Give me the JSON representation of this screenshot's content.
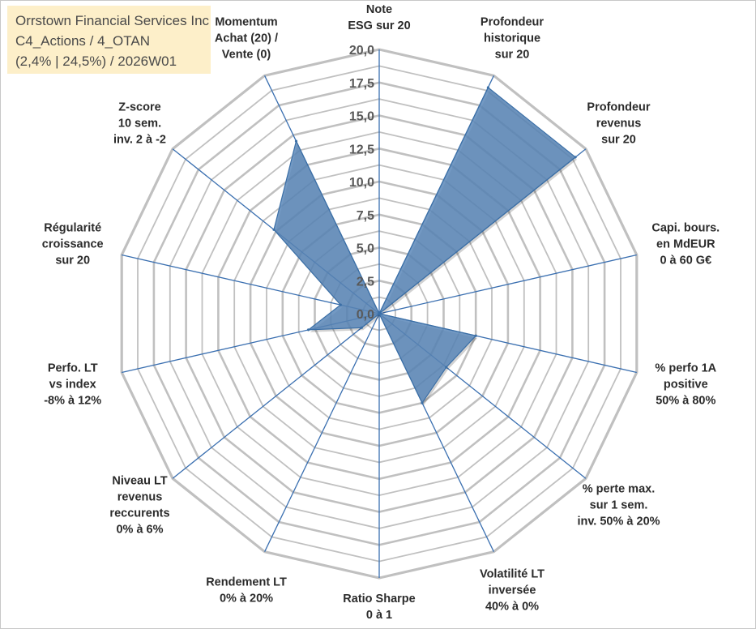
{
  "title_box": {
    "line1": "Orrstown Financial Services Inc",
    "line2": "C4_Actions / 4_OTAN",
    "line3": "(2,4% | 24,5%) / 2026W01"
  },
  "colors": {
    "fill": "#5b87b8",
    "stroke": "#3b6fa6",
    "grid": "#c0c0c0",
    "spoke": "#3a6fb0",
    "title_bg": "#fdefc9"
  },
  "chart_data": {
    "type": "radar",
    "title": "Orrstown Financial Services Inc",
    "rmin": 0,
    "rmax": 20,
    "ticks": [
      "0,0",
      "2,5",
      "5,0",
      "7,5",
      "10,0",
      "12,5",
      "15,0",
      "17,5",
      "20,0"
    ],
    "tick_values": [
      0,
      2.5,
      5,
      7.5,
      10,
      12.5,
      15,
      17.5,
      20
    ],
    "axes": [
      {
        "label": [
          "Note",
          "ESG sur 20"
        ],
        "value": 0
      },
      {
        "label": [
          "Profondeur",
          "historique",
          "sur 20"
        ],
        "value": 19
      },
      {
        "label": [
          "Profondeur",
          "revenus",
          "sur 20"
        ],
        "value": 19
      },
      {
        "label": [
          "Capi. bours.",
          "en MdEUR",
          "0 à 60 G€"
        ],
        "value": 0
      },
      {
        "label": [
          "% perfo 1A",
          "positive",
          "50% à 80%"
        ],
        "value": 7.5
      },
      {
        "label": [
          "% perte max.",
          "sur 1 sem.",
          "inv. 50% à 20%"
        ],
        "value": 6.5
      },
      {
        "label": [
          "Volatilité LT",
          "inversée",
          "40% à 0%"
        ],
        "value": 7.5
      },
      {
        "label": [
          "Ratio Sharpe",
          "0 à 1"
        ],
        "value": 0
      },
      {
        "label": [
          "Rendement LT",
          "0% à 20%"
        ],
        "value": 0
      },
      {
        "label": [
          "Niveau LT",
          "revenus",
          "reccurents",
          "0% à 6%"
        ],
        "value": 1.7
      },
      {
        "label": [
          "Perfo. LT",
          "vs index",
          "-8% à 12%"
        ],
        "value": 5.5
      },
      {
        "label": [
          "Régularité",
          "croissance",
          "sur 20"
        ],
        "value": 3.0
      },
      {
        "label": [
          "Z-score",
          "10 sem.",
          "inv. 2 à -2"
        ],
        "value": 10.2
      },
      {
        "label": [
          "Momentum",
          "Achat (20) /",
          "Vente (0)"
        ],
        "value": 14.5
      }
    ]
  }
}
